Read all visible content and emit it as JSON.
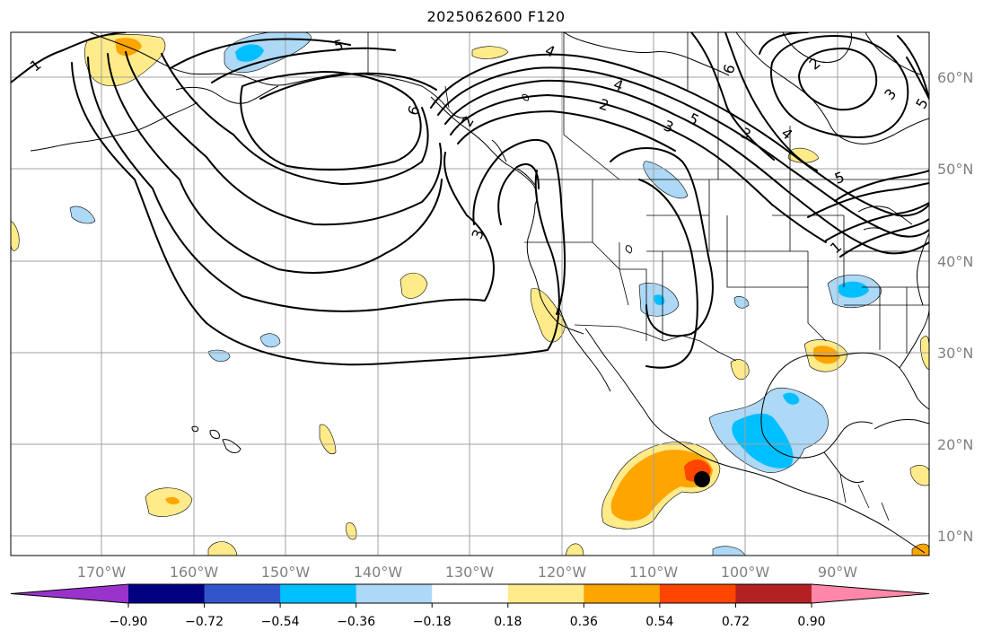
{
  "title": "2025062600 F120",
  "lon_labels": [
    "170°W",
    "160°W",
    "150°W",
    "140°W",
    "130°W",
    "120°W",
    "110°W",
    "100°W",
    "90°W"
  ],
  "lat_labels": [
    "60°N",
    "50°N",
    "40°N",
    "30°N",
    "20°N",
    "10°N"
  ],
  "colorbar": {
    "ticks": [
      "−0.90",
      "−0.72",
      "−0.54",
      "−0.36",
      "−0.18",
      "0.18",
      "0.36",
      "0.54",
      "0.72",
      "0.90"
    ],
    "colors": [
      "#9933cc",
      "#000080",
      "#3355cc",
      "#00bfff",
      "#add8f6",
      "#ffffff",
      "#ffeb8a",
      "#ffa500",
      "#ff4500",
      "#b22222",
      "#ff88aa"
    ]
  },
  "contour_labels": [
    "1",
    "5",
    "4",
    "6",
    "2",
    "3",
    "3",
    "4",
    "5",
    "6",
    "2",
    "3",
    "4",
    "5",
    "2",
    "5",
    "3",
    "1"
  ],
  "colors": {
    "grid": "#a0a0a0",
    "axis_label": "#808080",
    "pos_light": "#ffeb8a",
    "pos_mid": "#ffa500",
    "pos_strong": "#ff4500",
    "neg_light": "#add8f6",
    "neg_mid": "#00bfff"
  },
  "marker": "black-dot"
}
